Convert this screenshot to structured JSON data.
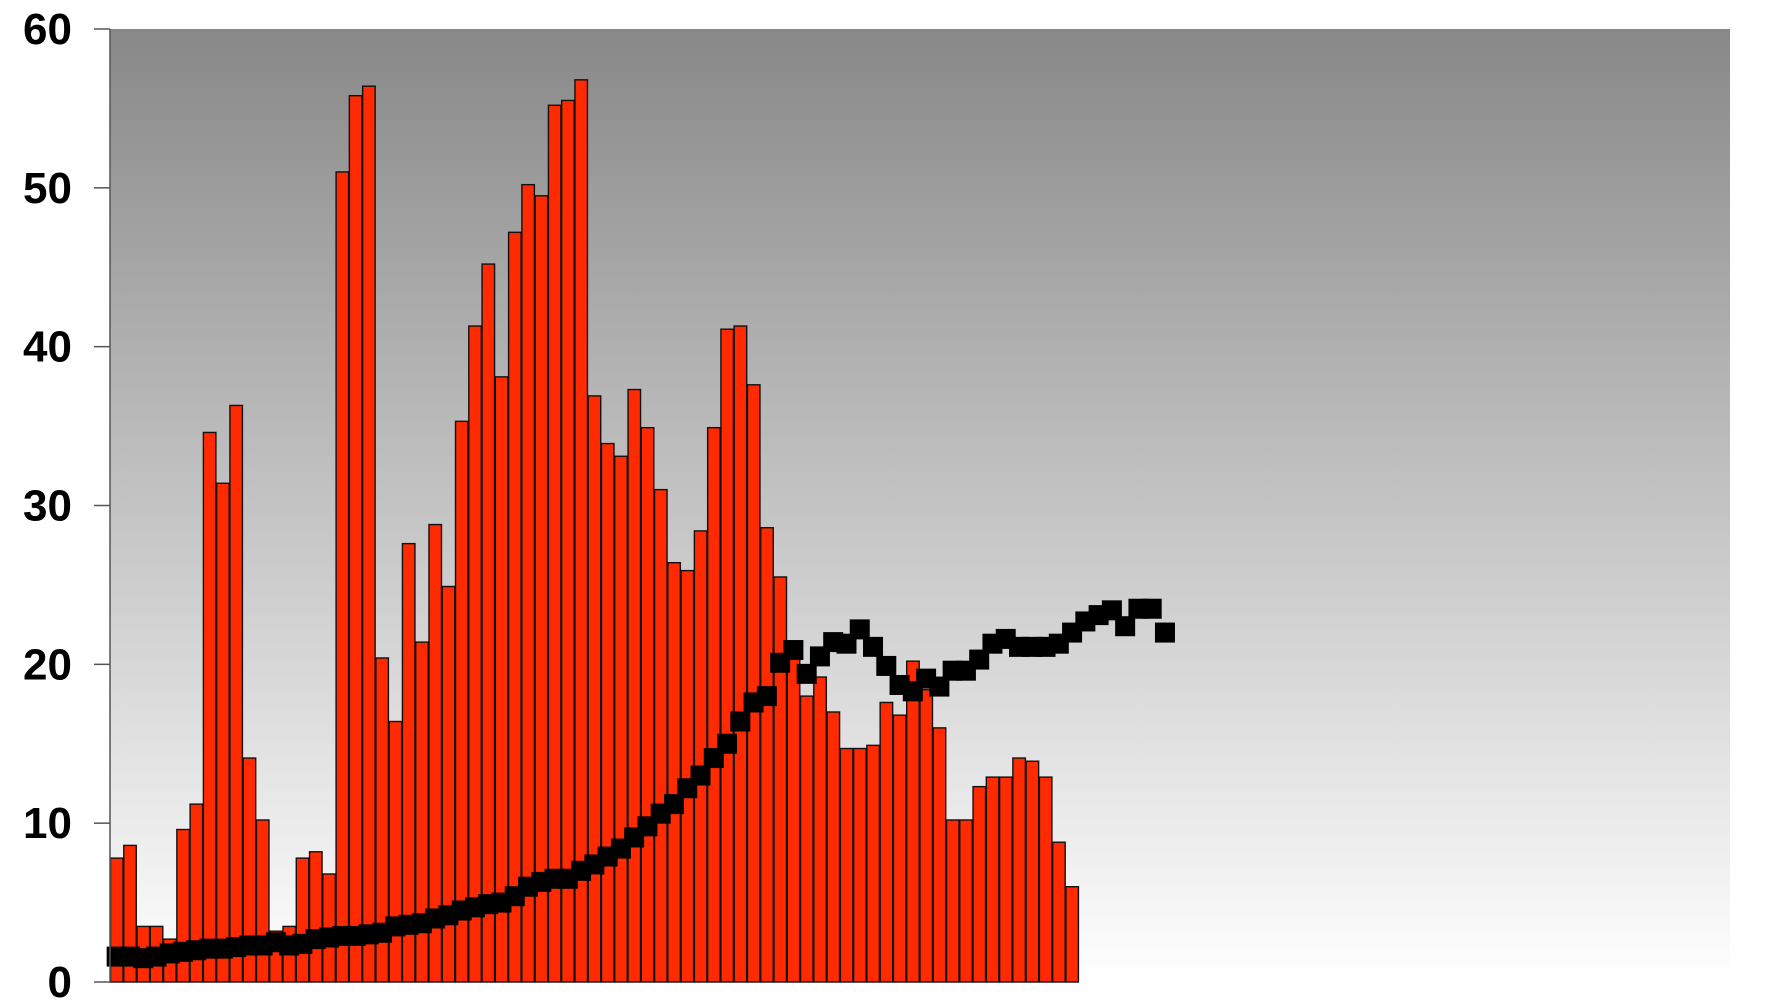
{
  "chart_data": {
    "type": "bar",
    "title": "",
    "xlabel": "",
    "ylabel": "",
    "ylim": [
      0,
      60
    ],
    "yticks": [
      0,
      10,
      20,
      30,
      40,
      50,
      60
    ],
    "ytick_labels": [
      "0",
      "10",
      "20",
      "30",
      "40",
      "50",
      "60"
    ],
    "grid": false,
    "legend": "none",
    "total_slots": 122,
    "series": [
      {
        "type": "bar",
        "color": "#ff2a00",
        "values": [
          7.8,
          8.6,
          3.5,
          3.5,
          2.7,
          9.6,
          11.2,
          34.6,
          31.4,
          36.3,
          14.1,
          10.2,
          3.2,
          3.5,
          7.8,
          8.2,
          6.8,
          51.0,
          55.8,
          56.4,
          20.4,
          16.4,
          27.6,
          21.4,
          28.8,
          24.9,
          35.3,
          41.3,
          45.2,
          38.1,
          47.2,
          50.2,
          49.5,
          55.2,
          55.5,
          56.8,
          36.9,
          33.9,
          33.1,
          37.3,
          34.9,
          31.0,
          26.4,
          25.9,
          28.4,
          34.9,
          41.1,
          41.3,
          37.6,
          28.6,
          25.5,
          20.8,
          18.0,
          19.2,
          17.0,
          14.7,
          14.7,
          14.9,
          17.6,
          16.8,
          20.2,
          18.4,
          16.0,
          10.2,
          10.2,
          12.3,
          12.9,
          12.9,
          14.1,
          13.9,
          12.9,
          8.8,
          6.0
        ]
      },
      {
        "type": "line",
        "color": "#000000",
        "marker": "square",
        "values": [
          1.6,
          1.6,
          1.5,
          1.6,
          1.8,
          1.9,
          2.0,
          2.1,
          2.1,
          2.2,
          2.3,
          2.3,
          2.5,
          2.3,
          2.4,
          2.7,
          2.8,
          2.9,
          2.9,
          3.0,
          3.1,
          3.5,
          3.6,
          3.7,
          4.0,
          4.2,
          4.5,
          4.7,
          4.9,
          5.0,
          5.4,
          6.0,
          6.3,
          6.5,
          6.5,
          7.0,
          7.4,
          7.9,
          8.4,
          9.1,
          9.8,
          10.6,
          11.2,
          12.2,
          13.0,
          14.1,
          15.0,
          16.4,
          17.6,
          18.0,
          20.1,
          20.9,
          19.4,
          20.5,
          21.4,
          21.3,
          22.2,
          21.1,
          19.9,
          18.7,
          18.3,
          19.1,
          18.6,
          19.6,
          19.6,
          20.3,
          21.3,
          21.6,
          21.1,
          21.1,
          21.1,
          21.3,
          22.0,
          22.7,
          23.1,
          23.4,
          22.4,
          23.5,
          23.5,
          22.0
        ]
      }
    ]
  },
  "colors": {
    "plot_gradient_top": "#888888",
    "plot_gradient_bottom": "#ffffff",
    "bar_fill": "#ff2a00",
    "bar_stroke": "#111111",
    "marker": "#000000"
  }
}
